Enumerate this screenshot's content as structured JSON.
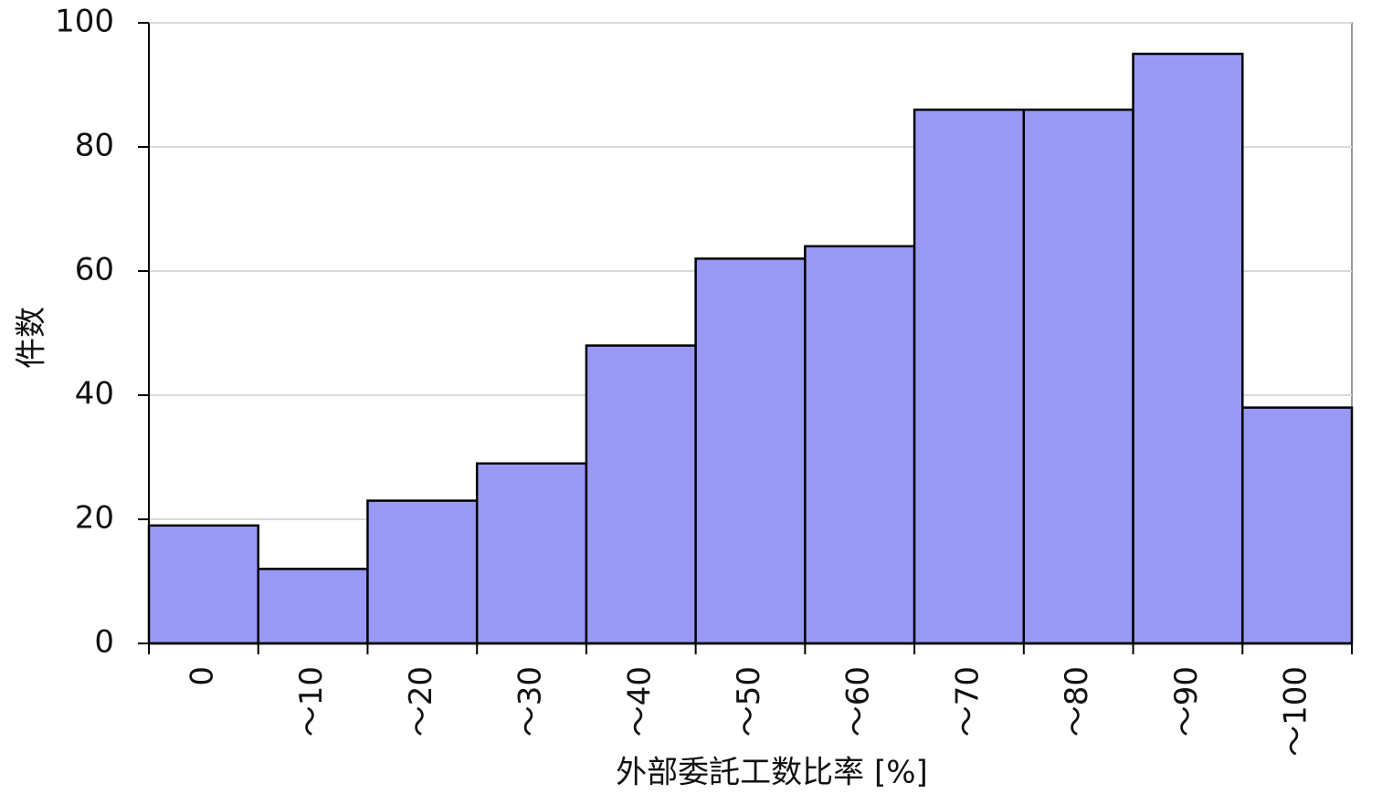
{
  "chart_data": {
    "type": "bar",
    "categories": [
      "0",
      "〜10",
      "〜20",
      "〜30",
      "〜40",
      "〜50",
      "〜60",
      "〜70",
      "〜80",
      "〜90",
      "〜100"
    ],
    "values": [
      19,
      12,
      23,
      29,
      48,
      62,
      64,
      86,
      86,
      95,
      38
    ],
    "color": "#9999f5",
    "x_label": "外部委託工数比率 [%]",
    "y_label": "件数",
    "ylim": [
      0,
      100
    ],
    "yticks": [
      0,
      20,
      40,
      60,
      80,
      100
    ],
    "grid": true
  }
}
